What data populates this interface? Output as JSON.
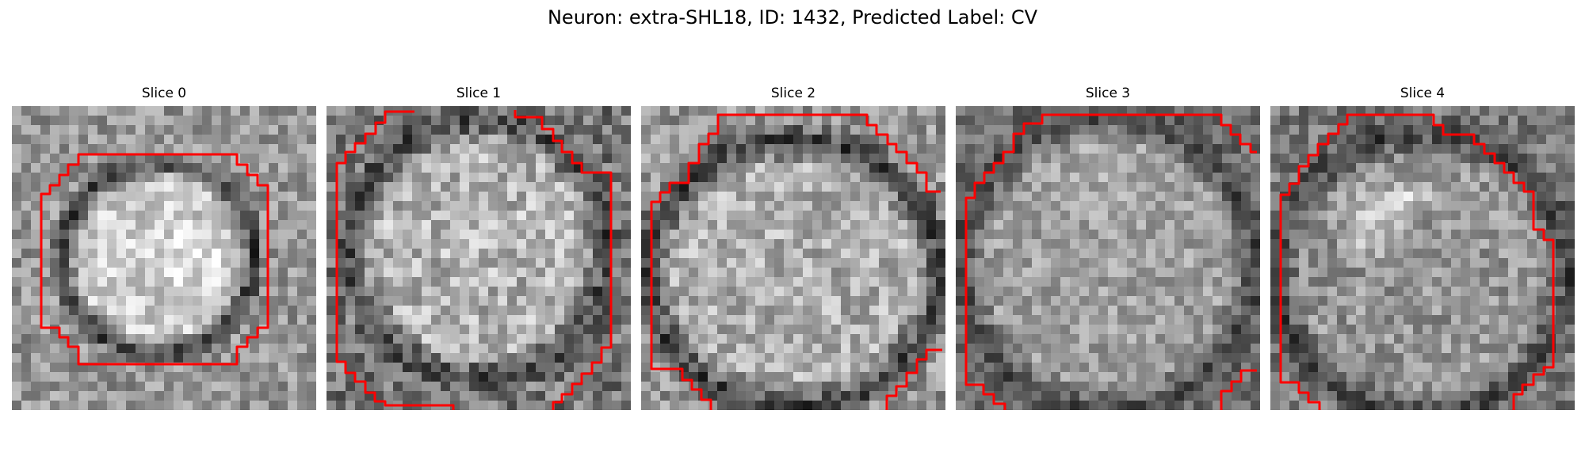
{
  "figure": {
    "title": "Neuron: extra-SHL18, ID: 1432, Predicted Label: CV"
  },
  "panels": [
    {
      "title": "Slice 0"
    },
    {
      "title": "Slice 1"
    },
    {
      "title": "Slice 2"
    },
    {
      "title": "Slice 3"
    },
    {
      "title": "Slice 4"
    }
  ],
  "style": {
    "contour_color": "#ff0000",
    "colormap": "gray"
  }
}
